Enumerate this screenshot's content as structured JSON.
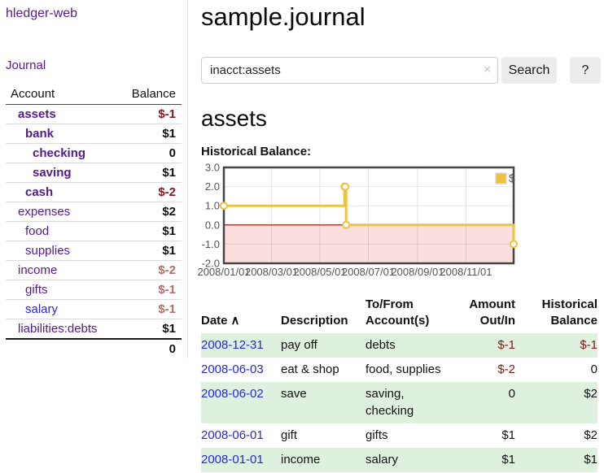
{
  "app": {
    "title": "hledger-web",
    "nav_journal": "Journal"
  },
  "colors": {
    "link_purple": "#551a8b",
    "link_blue": "#2828d8",
    "negative_dark": "#8b1515",
    "negative_muted": "#b36d6d",
    "row_stripe_green": "#def0de",
    "chart_line": "#edc240",
    "chart_negative_region": "#fbdede",
    "chart_zero_line": "#8b0000"
  },
  "sidebar": {
    "headers": {
      "account": "Account",
      "balance": "Balance"
    },
    "accounts": [
      {
        "name": "assets",
        "level": 0,
        "bold": true,
        "balance": "$-1",
        "negative": true
      },
      {
        "name": "bank",
        "level": 1,
        "bold": true,
        "balance": "$1",
        "negative": false
      },
      {
        "name": "checking",
        "level": 2,
        "bold": true,
        "balance": "0",
        "negative": false
      },
      {
        "name": "saving",
        "level": 2,
        "bold": true,
        "balance": "$1",
        "negative": false
      },
      {
        "name": "cash",
        "level": 1,
        "bold": true,
        "balance": "$-2",
        "negative": true
      },
      {
        "name": "expenses",
        "level": 0,
        "bold": false,
        "balance": "$2",
        "negative": false
      },
      {
        "name": "food",
        "level": 1,
        "bold": false,
        "balance": "$1",
        "negative": false
      },
      {
        "name": "supplies",
        "level": 1,
        "bold": false,
        "balance": "$1",
        "negative": false
      },
      {
        "name": "income",
        "level": 0,
        "bold": false,
        "balance": "$-2",
        "negative": true
      },
      {
        "name": "gifts",
        "level": 1,
        "bold": false,
        "balance": "$-1",
        "negative": true
      },
      {
        "name": "salary",
        "level": 1,
        "bold": false,
        "balance": "$-1",
        "negative": true,
        "blue_link": true
      },
      {
        "name": "liabilities:debts",
        "level": 0,
        "bold": false,
        "balance": "$1",
        "negative": false
      }
    ],
    "total": "0"
  },
  "header": {
    "journal_title": "sample.journal"
  },
  "search": {
    "value": "inacct:assets",
    "clear_icon": "×",
    "button_label": "Search",
    "help_label": "?"
  },
  "account_page": {
    "title": "assets",
    "chart_label": "Historical Balance:"
  },
  "chart_data": {
    "type": "line",
    "step": true,
    "title": "Historical Balance",
    "legend": [
      {
        "label": "$",
        "color": "#edc240"
      }
    ],
    "legend_position": "top-right",
    "grid": true,
    "x_range": [
      "2008-01-01",
      "2008-12-31"
    ],
    "ylim": [
      -2,
      3
    ],
    "yticks": [
      {
        "value": 3,
        "label": "3.0"
      },
      {
        "value": 2,
        "label": "2.0"
      },
      {
        "value": 1,
        "label": "1.0"
      },
      {
        "value": 0,
        "label": "0.0"
      },
      {
        "value": -1,
        "label": "-1.0"
      },
      {
        "value": -2,
        "label": "-2.0"
      }
    ],
    "xticks": [
      {
        "date": "2008-01-01",
        "label": "2008/01/01"
      },
      {
        "date": "2008-03-01",
        "label": "2008/03/01"
      },
      {
        "date": "2008-05-01",
        "label": "2008/05/01"
      },
      {
        "date": "2008-07-01",
        "label": "2008/07/01"
      },
      {
        "date": "2008-09-01",
        "label": "2008/09/01"
      },
      {
        "date": "2008-11-01",
        "label": "2008/11/01"
      }
    ],
    "series": [
      {
        "name": "$",
        "color": "#edc240",
        "points": [
          [
            "2008-01-01",
            1
          ],
          [
            "2008-06-01",
            2
          ],
          [
            "2008-06-02",
            2
          ],
          [
            "2008-06-03",
            0
          ],
          [
            "2008-12-31",
            -1
          ]
        ]
      }
    ]
  },
  "register": {
    "sort_icon": "∧",
    "columns": [
      {
        "line1": "Date",
        "line2": ""
      },
      {
        "line1": "Description",
        "line2": ""
      },
      {
        "line1": "To/From",
        "line2": "Account(s)"
      },
      {
        "line1": "Amount",
        "line2": "Out/In"
      },
      {
        "line1": "Historical",
        "line2": "Balance"
      }
    ],
    "rows": [
      {
        "date": "2008-12-31",
        "description": "pay off",
        "accounts": "debts",
        "amount": "$-1",
        "amount_negative": true,
        "balance": "$-1",
        "balance_negative": true
      },
      {
        "date": "2008-06-03",
        "description": "eat & shop",
        "accounts": "food, supplies",
        "amount": "$-2",
        "amount_negative": true,
        "balance": "0",
        "balance_negative": false
      },
      {
        "date": "2008-06-02",
        "description": "save",
        "accounts": "saving, checking",
        "amount": "0",
        "amount_negative": false,
        "balance": "$2",
        "balance_negative": false
      },
      {
        "date": "2008-06-01",
        "description": "gift",
        "accounts": "gifts",
        "amount": "$1",
        "amount_negative": false,
        "balance": "$2",
        "balance_negative": false
      },
      {
        "date": "2008-01-01",
        "description": "income",
        "accounts": "salary",
        "amount": "$1",
        "amount_negative": false,
        "balance": "$1",
        "balance_negative": false
      }
    ]
  }
}
